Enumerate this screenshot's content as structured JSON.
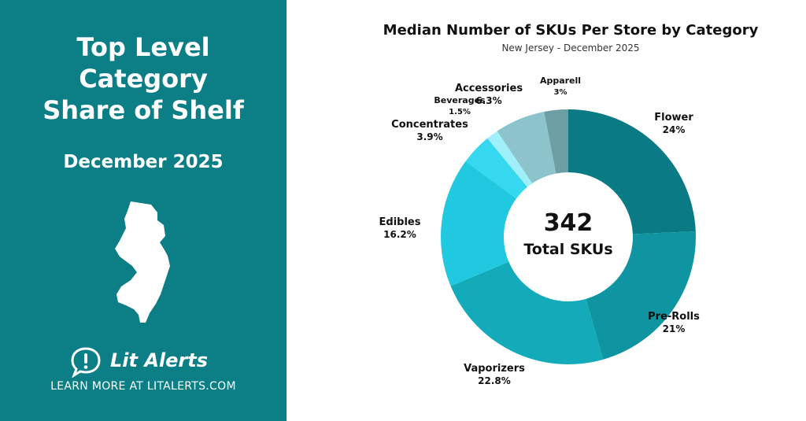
{
  "panel": {
    "heading_lines": [
      "Top Level",
      "Category",
      "Share of Shelf"
    ],
    "date": "December 2025",
    "brand": "Lit Alerts",
    "cta": "LEARN MORE AT LITALERTS.COM",
    "bg_color": "#0b7e86"
  },
  "chart_data": {
    "type": "pie",
    "title": "Median Number of SKUs Per Store by Category",
    "subtitle": "New Jersey - December 2025",
    "center_value": "342",
    "center_label": "Total SKUs",
    "slices": [
      {
        "name": "Flower",
        "value": 24,
        "label": "24%",
        "color": "#0a7b84"
      },
      {
        "name": "Pre-Rolls",
        "value": 21,
        "label": "21%",
        "color": "#0e95a1"
      },
      {
        "name": "Vaporizers",
        "value": 22.8,
        "label": "22.8%",
        "color": "#13abba"
      },
      {
        "name": "Edibles",
        "value": 16.2,
        "label": "16.2%",
        "color": "#20c9df"
      },
      {
        "name": "Concentrates",
        "value": 3.9,
        "label": "3.9%",
        "color": "#35d8ee"
      },
      {
        "name": "Beverages",
        "value": 1.5,
        "label": "1.5%",
        "color": "#9ff0fa"
      },
      {
        "name": "Accessories",
        "value": 6.3,
        "label": "6.3%",
        "color": "#8dc4cc"
      },
      {
        "name": "Apparell",
        "value": 3,
        "label": "3%",
        "color": "#6c9ea4"
      }
    ]
  }
}
